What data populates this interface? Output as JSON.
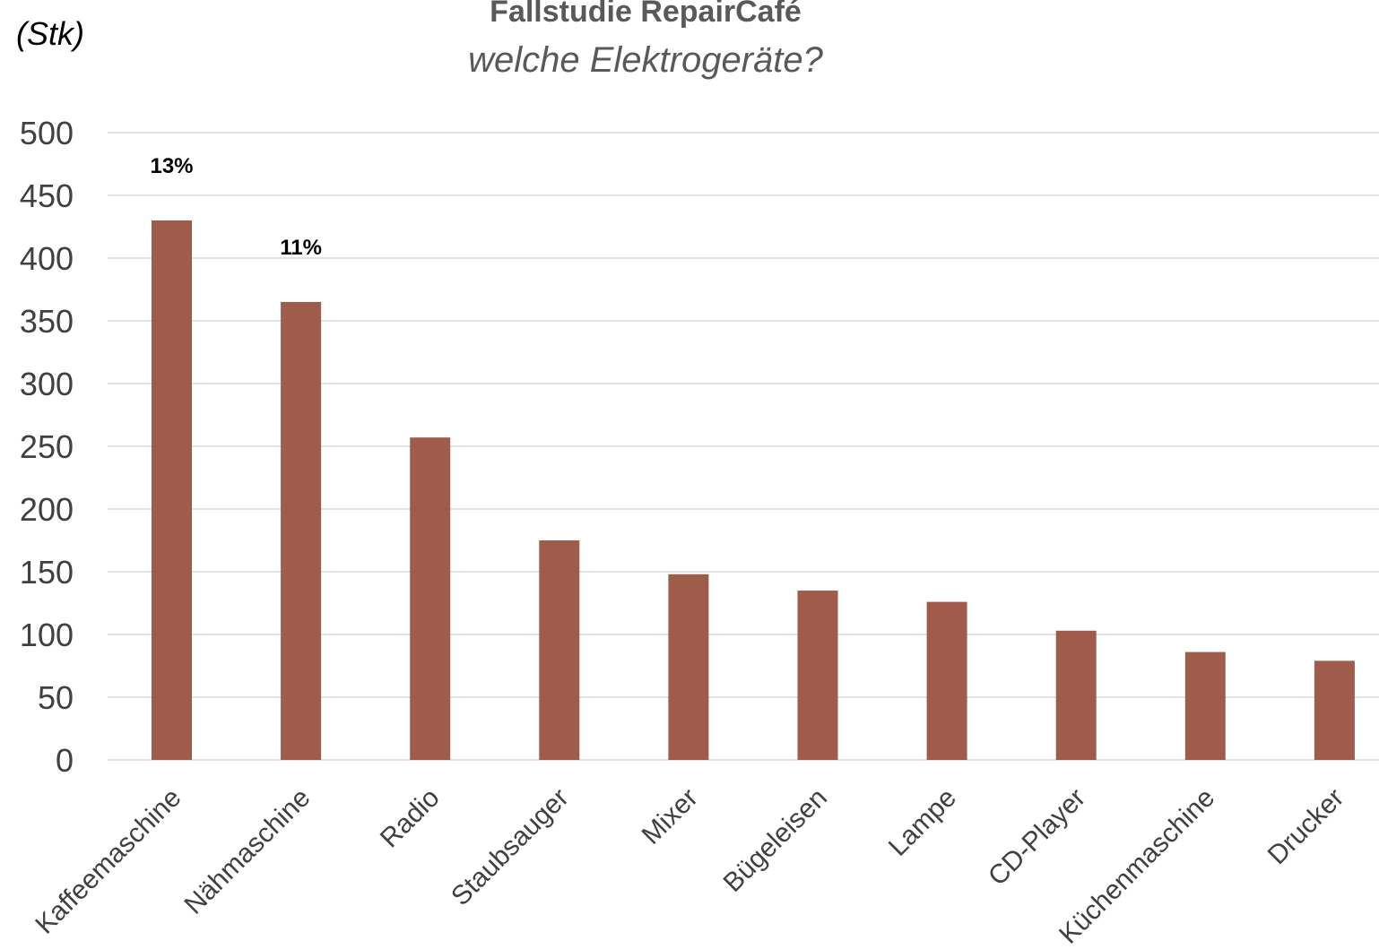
{
  "chart_data": {
    "type": "bar",
    "title": "Fallstudie RepairCafé",
    "subtitle": "welche Elektrogeräte?",
    "ylabel": "(Stk)",
    "xlabel": "",
    "ylim": [
      0,
      500
    ],
    "yticks": [
      0,
      50,
      100,
      150,
      200,
      250,
      300,
      350,
      400,
      450,
      500
    ],
    "grid": true,
    "categories": [
      "Kaffeemaschine",
      "Nähmaschine",
      "Radio",
      "Staubsauger",
      "Mixer",
      "Bügeleisen",
      "Lampe",
      "CD-Player",
      "Küchenmaschine",
      "Drucker"
    ],
    "values": [
      430,
      365,
      257,
      175,
      148,
      135,
      126,
      103,
      86,
      79
    ],
    "data_labels": [
      "13%",
      "11%",
      "",
      "",
      "",
      "",
      "",
      "",
      "",
      ""
    ],
    "bar_color": "#a05c4a"
  }
}
